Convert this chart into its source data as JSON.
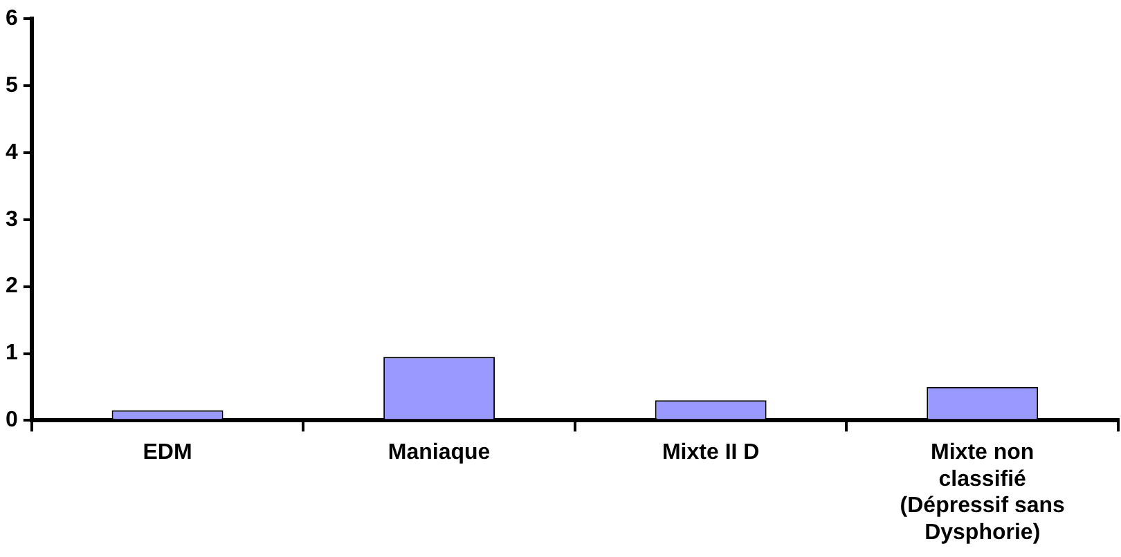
{
  "chart_data": {
    "type": "bar",
    "categories": [
      "EDM",
      "Maniaque",
      "Mixte II D",
      "Mixte non classifié (Dépressif sans Dysphorie)"
    ],
    "values": [
      0.15,
      0.95,
      0.3,
      0.5
    ],
    "color": "#9999ff",
    "ylim": [
      0,
      6
    ],
    "yticks": [
      0,
      1,
      2,
      3,
      4,
      5,
      6
    ],
    "grid": false,
    "legend": false
  }
}
